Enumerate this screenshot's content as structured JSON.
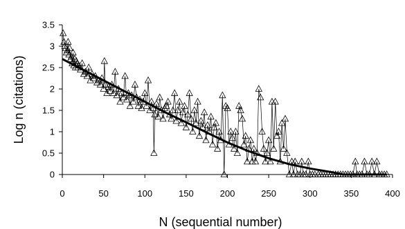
{
  "chart_data": {
    "type": "scatter",
    "title": "",
    "xlabel": "N (sequential number)",
    "ylabel": "Log n (citations)",
    "xlim": [
      0,
      400
    ],
    "ylim": [
      0,
      3.5
    ],
    "xticks": [
      0,
      50,
      100,
      150,
      200,
      250,
      300,
      350,
      400
    ],
    "yticks": [
      0,
      0.5,
      1,
      1.5,
      2,
      2.5,
      3,
      3.5
    ],
    "xtick_labels": [
      "0",
      "50",
      "100",
      "150",
      "200",
      "250",
      "300",
      "350",
      "400"
    ],
    "ytick_labels": [
      "0",
      "0.5",
      "1",
      "1.5",
      "2",
      "2.5",
      "3",
      "3.5"
    ],
    "grid": false,
    "legend": "none",
    "marker": "open-triangle",
    "colors": {
      "series": "#000000"
    },
    "series": [
      {
        "points": [
          [
            1,
            3.3
          ],
          [
            2,
            3.1
          ],
          [
            3,
            3.0
          ],
          [
            4,
            2.95
          ],
          [
            5,
            2.85
          ],
          [
            6,
            2.9
          ],
          [
            7,
            3.1
          ],
          [
            8,
            2.8
          ],
          [
            9,
            2.95
          ],
          [
            10,
            2.7
          ],
          [
            11,
            2.75
          ],
          [
            12,
            2.6
          ],
          [
            13,
            2.85
          ],
          [
            14,
            2.55
          ],
          [
            15,
            2.7
          ],
          [
            16,
            2.5
          ],
          [
            17,
            2.65
          ],
          [
            18,
            2.6
          ],
          [
            19,
            2.5
          ],
          [
            20,
            2.55
          ],
          [
            22,
            2.45
          ],
          [
            24,
            2.6
          ],
          [
            26,
            2.35
          ],
          [
            28,
            2.4
          ],
          [
            30,
            2.3
          ],
          [
            32,
            2.5
          ],
          [
            34,
            2.2
          ],
          [
            36,
            2.35
          ],
          [
            38,
            2.25
          ],
          [
            40,
            2.3
          ],
          [
            42,
            2.15
          ],
          [
            44,
            2.2
          ],
          [
            46,
            2.1
          ],
          [
            48,
            2.25
          ],
          [
            50,
            2.0
          ],
          [
            51,
            2.65
          ],
          [
            52,
            2.1
          ],
          [
            54,
            1.9
          ],
          [
            56,
            2.05
          ],
          [
            58,
            1.95
          ],
          [
            60,
            2.1
          ],
          [
            62,
            1.9
          ],
          [
            64,
            2.4
          ],
          [
            66,
            1.85
          ],
          [
            68,
            2.0
          ],
          [
            70,
            1.7
          ],
          [
            72,
            1.9
          ],
          [
            74,
            1.8
          ],
          [
            76,
            2.3
          ],
          [
            78,
            1.75
          ],
          [
            80,
            1.9
          ],
          [
            82,
            1.6
          ],
          [
            84,
            1.85
          ],
          [
            86,
            1.7
          ],
          [
            88,
            2.1
          ],
          [
            90,
            1.8
          ],
          [
            92,
            1.6
          ],
          [
            94,
            1.75
          ],
          [
            96,
            1.55
          ],
          [
            98,
            1.7
          ],
          [
            100,
            1.9
          ],
          [
            102,
            1.6
          ],
          [
            104,
            2.2
          ],
          [
            106,
            1.5
          ],
          [
            108,
            1.7
          ],
          [
            110,
            1.55
          ],
          [
            111,
            0.5
          ],
          [
            112,
            1.4
          ],
          [
            114,
            1.65
          ],
          [
            116,
            1.35
          ],
          [
            118,
            1.8
          ],
          [
            120,
            1.5
          ],
          [
            122,
            1.3
          ],
          [
            124,
            1.55
          ],
          [
            126,
            1.6
          ],
          [
            128,
            1.7
          ],
          [
            130,
            1.4
          ],
          [
            132,
            1.3
          ],
          [
            134,
            1.5
          ],
          [
            136,
            1.9
          ],
          [
            138,
            1.25
          ],
          [
            140,
            1.5
          ],
          [
            142,
            1.7
          ],
          [
            144,
            1.2
          ],
          [
            146,
            1.45
          ],
          [
            148,
            1.6
          ],
          [
            150,
            1.1
          ],
          [
            152,
            1.4
          ],
          [
            154,
            1.9
          ],
          [
            156,
            1.3
          ],
          [
            158,
            1.0
          ],
          [
            160,
            1.5
          ],
          [
            162,
            1.2
          ],
          [
            164,
            1.7
          ],
          [
            166,
            0.9
          ],
          [
            168,
            1.25
          ],
          [
            170,
            1.1
          ],
          [
            172,
            1.45
          ],
          [
            174,
            0.8
          ],
          [
            176,
            1.15
          ],
          [
            178,
            1.0
          ],
          [
            180,
            1.35
          ],
          [
            182,
            0.7
          ],
          [
            184,
            1.1
          ],
          [
            186,
            1.2
          ],
          [
            188,
            0.6
          ],
          [
            190,
            1.0
          ],
          [
            192,
            0.8
          ],
          [
            194,
            1.85
          ],
          [
            196,
            0.0
          ],
          [
            198,
            1.6
          ],
          [
            200,
            1.55
          ],
          [
            202,
            0.7
          ],
          [
            204,
            1.0
          ],
          [
            206,
            0.85
          ],
          [
            208,
            0.6
          ],
          [
            210,
            1.0
          ],
          [
            212,
            0.5
          ],
          [
            214,
            1.6
          ],
          [
            216,
            1.5
          ],
          [
            218,
            1.3
          ],
          [
            220,
            0.7
          ],
          [
            222,
            0.9
          ],
          [
            224,
            0.3
          ],
          [
            226,
            0.6
          ],
          [
            228,
            0.8
          ],
          [
            230,
            0.3
          ],
          [
            232,
            0.6
          ],
          [
            234,
            0.3
          ],
          [
            236,
            0.5
          ],
          [
            238,
            2.0
          ],
          [
            240,
            1.8
          ],
          [
            242,
            1.0
          ],
          [
            244,
            0.6
          ],
          [
            246,
            0.3
          ],
          [
            248,
            0.5
          ],
          [
            250,
            0.8
          ],
          [
            252,
            0.3
          ],
          [
            254,
            1.7
          ],
          [
            256,
            0.6
          ],
          [
            258,
            1.7
          ],
          [
            260,
            0.9
          ],
          [
            262,
            1.0
          ],
          [
            264,
            0.3
          ],
          [
            266,
            1.2
          ],
          [
            268,
            0.6
          ],
          [
            270,
            1.3
          ],
          [
            272,
            0.5
          ],
          [
            275,
            0.0
          ],
          [
            278,
            0.3
          ],
          [
            280,
            0.0
          ],
          [
            282,
            0.3
          ],
          [
            285,
            0.0
          ],
          [
            288,
            0.0
          ],
          [
            290,
            0.3
          ],
          [
            292,
            0.0
          ],
          [
            295,
            0.0
          ],
          [
            298,
            0.3
          ],
          [
            300,
            0.0
          ],
          [
            303,
            0.0
          ],
          [
            306,
            0.0
          ],
          [
            310,
            0.0
          ],
          [
            313,
            0.0
          ],
          [
            316,
            0.0
          ],
          [
            319,
            0.0
          ],
          [
            322,
            0.0
          ],
          [
            325,
            0.0
          ],
          [
            328,
            0.0
          ],
          [
            331,
            0.0
          ],
          [
            334,
            0.0
          ],
          [
            337,
            0.0
          ],
          [
            340,
            0.0
          ],
          [
            343,
            0.0
          ],
          [
            346,
            0.0
          ],
          [
            349,
            0.0
          ],
          [
            352,
            0.0
          ],
          [
            355,
            0.3
          ],
          [
            357,
            0.0
          ],
          [
            360,
            0.0
          ],
          [
            363,
            0.0
          ],
          [
            366,
            0.3
          ],
          [
            369,
            0.0
          ],
          [
            372,
            0.0
          ],
          [
            375,
            0.3
          ],
          [
            378,
            0.0
          ],
          [
            381,
            0.3
          ],
          [
            384,
            0.0
          ],
          [
            387,
            0.0
          ],
          [
            390,
            0.0
          ],
          [
            393,
            0.0
          ]
        ]
      }
    ],
    "trend": {
      "type": "line",
      "points": [
        [
          0,
          2.7
        ],
        [
          25,
          2.45
        ],
        [
          50,
          2.2
        ],
        [
          75,
          1.95
        ],
        [
          100,
          1.7
        ],
        [
          125,
          1.45
        ],
        [
          150,
          1.22
        ],
        [
          175,
          0.98
        ],
        [
          200,
          0.75
        ],
        [
          225,
          0.55
        ],
        [
          250,
          0.38
        ],
        [
          275,
          0.24
        ],
        [
          300,
          0.14
        ],
        [
          325,
          0.06
        ],
        [
          340,
          0.0
        ],
        [
          393,
          0.0
        ]
      ]
    }
  }
}
